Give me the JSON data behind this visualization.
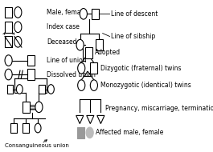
{
  "bg_color": "#ffffff",
  "text_color": "#000000",
  "font_size": 5.5,
  "labels": {
    "male_female": "Male, female",
    "index_case": "Index case",
    "deceased": "Deceased",
    "line_of_union": "Line of union",
    "dissolved_union": "Dissolved union",
    "consanguineous": "Consanguineous union",
    "line_of_descent": "Line of descent",
    "line_of_sibship": "Line of sibship",
    "adopted": "Adopted",
    "dizygotic": "Dizygotic (fraternal) twins",
    "monozygotic": "Monozygotic (identical) twins",
    "pregnancy": "Pregnancy, miscarriage, termination",
    "affected": "Affected male, female"
  }
}
